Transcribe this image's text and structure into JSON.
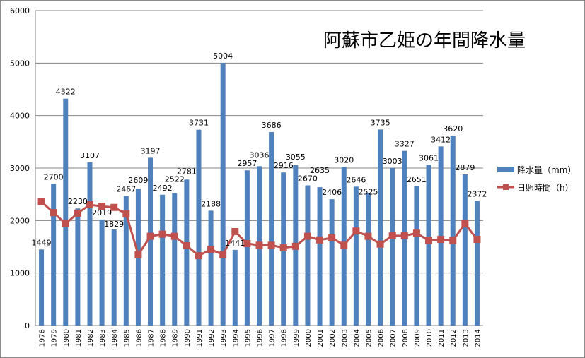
{
  "chart_data": {
    "type": "bar",
    "title": "阿蘇市乙姫の年間降水量",
    "xlabel": "",
    "ylabel": "",
    "ylim": [
      0,
      6000
    ],
    "yticks": [
      0,
      1000,
      2000,
      3000,
      4000,
      5000,
      6000
    ],
    "grid": true,
    "legend_position": "right",
    "categories": [
      "1978",
      "1979",
      "1980",
      "1981",
      "1982",
      "1983",
      "1984",
      "1985",
      "1986",
      "1987",
      "1988",
      "1989",
      "1990",
      "1991",
      "1992",
      "1993",
      "1994",
      "1995",
      "1996",
      "1997",
      "1998",
      "1999",
      "2000",
      "2001",
      "2002",
      "2003",
      "2004",
      "2005",
      "2006",
      "2007",
      "2008",
      "2009",
      "2010",
      "2011",
      "2012",
      "2013",
      "2014"
    ],
    "series": [
      {
        "name": "降水量（mm）",
        "type": "bar",
        "color": "#4f81bd",
        "show_labels": true,
        "values": [
          1449,
          2700,
          4322,
          2230,
          3107,
          2019,
          1829,
          2467,
          2609,
          3197,
          2492,
          2522,
          2781,
          3731,
          2188,
          5004,
          1441,
          2957,
          3036,
          3686,
          2916,
          3055,
          2670,
          2635,
          2406,
          3020,
          2646,
          2525,
          3735,
          3003,
          3327,
          2651,
          3061,
          3412,
          3620,
          2879,
          2372
        ]
      },
      {
        "name": "日照時間（h）",
        "type": "line",
        "color": "#c0504d",
        "show_labels": false,
        "values": [
          2360,
          2150,
          1940,
          2140,
          2300,
          2270,
          2250,
          2130,
          1350,
          1700,
          1740,
          1700,
          1520,
          1330,
          1450,
          1350,
          1790,
          1560,
          1530,
          1530,
          1480,
          1510,
          1700,
          1630,
          1670,
          1530,
          1800,
          1700,
          1550,
          1710,
          1710,
          1760,
          1620,
          1640,
          1620,
          1940,
          1640
        ]
      }
    ]
  }
}
